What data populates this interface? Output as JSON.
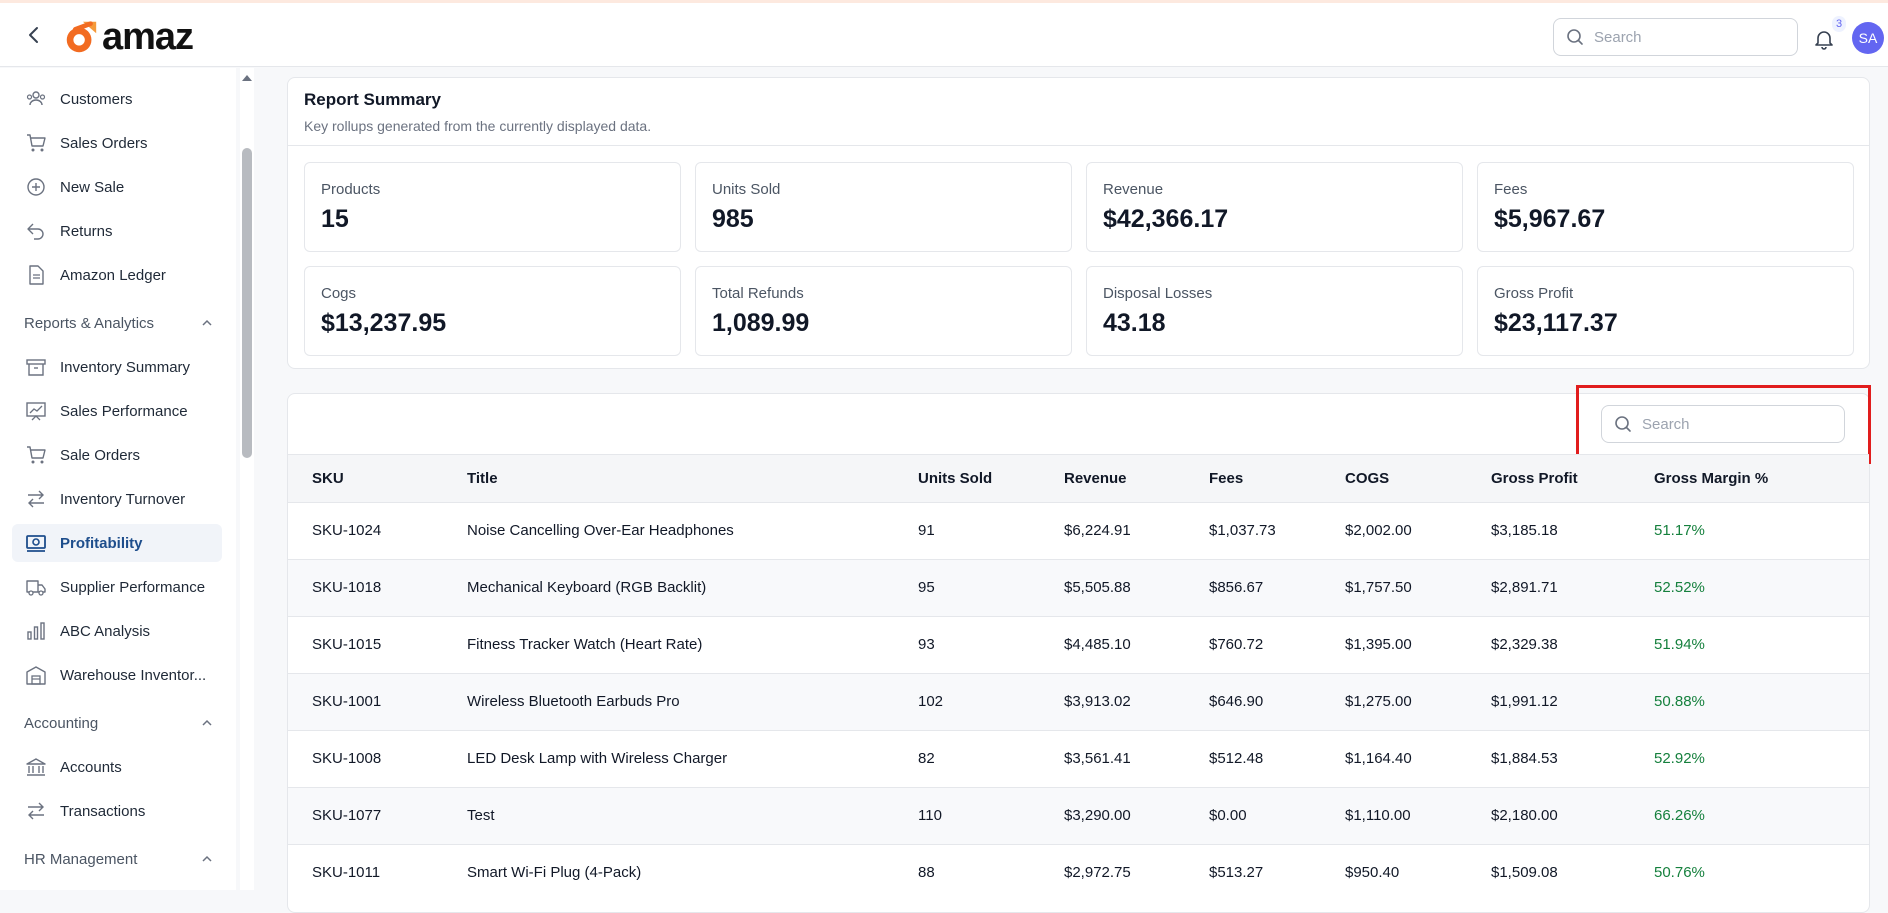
{
  "brand": {
    "name": "amaz"
  },
  "header": {
    "search_placeholder": "Search",
    "notification_count": "3",
    "avatar_initials": "SA"
  },
  "sidebar": {
    "items": [
      {
        "label": "Customers",
        "icon": "users-icon"
      },
      {
        "label": "Sales Orders",
        "icon": "cart-icon"
      },
      {
        "label": "New Sale",
        "icon": "plus-circle-icon"
      },
      {
        "label": "Returns",
        "icon": "undo-icon"
      },
      {
        "label": "Amazon Ledger",
        "icon": "document-icon"
      }
    ],
    "reports_section": "Reports & Analytics",
    "reports_items": [
      {
        "label": "Inventory Summary",
        "icon": "archive-icon"
      },
      {
        "label": "Sales Performance",
        "icon": "chart-board-icon"
      },
      {
        "label": "Sale Orders",
        "icon": "cart-icon"
      },
      {
        "label": "Inventory Turnover",
        "icon": "arrows-swap-icon"
      },
      {
        "label": "Profitability",
        "icon": "money-icon",
        "active": true
      },
      {
        "label": "Supplier Performance",
        "icon": "truck-icon"
      },
      {
        "label": "ABC Analysis",
        "icon": "bar-chart-icon"
      },
      {
        "label": "Warehouse Inventor...",
        "icon": "warehouse-icon"
      }
    ],
    "accounting_section": "Accounting",
    "accounting_items": [
      {
        "label": "Accounts",
        "icon": "bank-icon"
      },
      {
        "label": "Transactions",
        "icon": "arrows-swap-icon"
      }
    ],
    "hr_section": "HR Management"
  },
  "summary": {
    "title": "Report Summary",
    "subtitle": "Key rollups generated from the currently displayed data.",
    "stats": [
      {
        "label": "Products",
        "value": "15"
      },
      {
        "label": "Units Sold",
        "value": "985"
      },
      {
        "label": "Revenue",
        "value": "$42,366.17"
      },
      {
        "label": "Fees",
        "value": "$5,967.67"
      },
      {
        "label": "Cogs",
        "value": "$13,237.95"
      },
      {
        "label": "Total Refunds",
        "value": "1,089.99"
      },
      {
        "label": "Disposal Losses",
        "value": "43.18"
      },
      {
        "label": "Gross Profit",
        "value": "$23,117.37"
      }
    ]
  },
  "table": {
    "search_placeholder": "Search",
    "columns": [
      "SKU",
      "Title",
      "Units Sold",
      "Revenue",
      "Fees",
      "COGS",
      "Gross Profit",
      "Gross Margin %"
    ],
    "rows": [
      [
        "SKU-1024",
        "Noise Cancelling Over-Ear Headphones",
        "91",
        "$6,224.91",
        "$1,037.73",
        "$2,002.00",
        "$3,185.18",
        "51.17%"
      ],
      [
        "SKU-1018",
        "Mechanical Keyboard (RGB Backlit)",
        "95",
        "$5,505.88",
        "$856.67",
        "$1,757.50",
        "$2,891.71",
        "52.52%"
      ],
      [
        "SKU-1015",
        "Fitness Tracker Watch (Heart Rate)",
        "93",
        "$4,485.10",
        "$760.72",
        "$1,395.00",
        "$2,329.38",
        "51.94%"
      ],
      [
        "SKU-1001",
        "Wireless Bluetooth Earbuds Pro",
        "102",
        "$3,913.02",
        "$646.90",
        "$1,275.00",
        "$1,991.12",
        "50.88%"
      ],
      [
        "SKU-1008",
        "LED Desk Lamp with Wireless Charger",
        "82",
        "$3,561.41",
        "$512.48",
        "$1,164.40",
        "$1,884.53",
        "52.92%"
      ],
      [
        "SKU-1077",
        "Test",
        "110",
        "$3,290.00",
        "$0.00",
        "$1,110.00",
        "$2,180.00",
        "66.26%"
      ],
      [
        "SKU-1011",
        "Smart Wi-Fi Plug (4-Pack)",
        "88",
        "$2,972.75",
        "$513.27",
        "$950.40",
        "$1,509.08",
        "50.76%"
      ]
    ]
  },
  "colors": {
    "accent": "#1e4e8c",
    "margin_green": "#15803d",
    "highlight_red": "#e11d1d",
    "avatar": "#6366f1"
  }
}
